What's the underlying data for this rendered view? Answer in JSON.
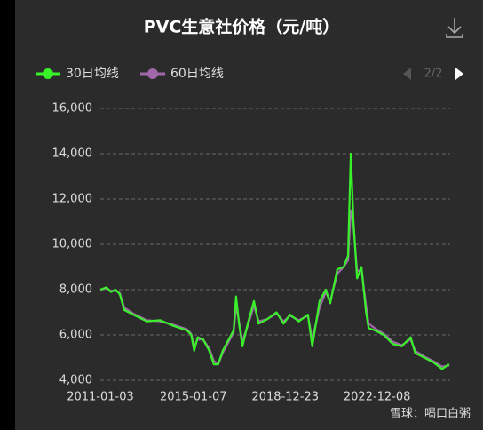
{
  "chart_data": {
    "type": "line",
    "title": "PVC生意社价格（元/吨）",
    "pager": "2/2",
    "watermark": "雪球：喝口白粥",
    "x": [
      "2011-01-03",
      "2011-04-10",
      "2011-06-20",
      "2011-09-01",
      "2011-11-05",
      "2012-01-15",
      "2012-06-05",
      "2013-01-05",
      "2013-08-01",
      "2014-03-01",
      "2014-09-28",
      "2014-12-05",
      "2015-01-20",
      "2015-03-15",
      "2015-06-10",
      "2015-09-15",
      "2015-11-25",
      "2016-02-01",
      "2016-04-12",
      "2016-08-05",
      "2016-10-01",
      "2016-11-10",
      "2016-12-25",
      "2017-02-18",
      "2017-05-12",
      "2017-08-18",
      "2017-10-30",
      "2018-03-18",
      "2018-08-08",
      "2018-11-28",
      "2019-03-08",
      "2019-07-25",
      "2019-12-15",
      "2020-02-22",
      "2020-06-15",
      "2020-09-22",
      "2020-11-30",
      "2021-03-22",
      "2021-06-30",
      "2021-09-08",
      "2021-10-20",
      "2021-12-02",
      "2022-01-28",
      "2022-04-06",
      "2022-06-18",
      "2022-07-28",
      "2022-11-02",
      "2023-03-25",
      "2023-08-12",
      "2024-01-01",
      "2024-05-20",
      "2024-07-30",
      "2024-12-18",
      "2025-05-08",
      "2025-09-25",
      "2026-01-16"
    ],
    "series": [
      {
        "name": "30日均线",
        "color": "#39f12a",
        "values": [
          8000,
          8100,
          7900,
          8000,
          7800,
          7100,
          6900,
          6600,
          6650,
          6400,
          6200,
          6000,
          5300,
          5900,
          5800,
          5300,
          4700,
          4700,
          5300,
          5900,
          6200,
          7700,
          6500,
          5500,
          6500,
          7500,
          6500,
          6700,
          7000,
          6500,
          6900,
          6600,
          6900,
          5500,
          7500,
          8000,
          7400,
          8900,
          9000,
          9500,
          14000,
          11000,
          8500,
          9000,
          7000,
          6300,
          6200,
          6000,
          5600,
          5500,
          5900,
          5200,
          5000,
          4800,
          4500,
          4700
        ]
      },
      {
        "name": "60日均线",
        "color": "#a068a8",
        "values": [
          8000,
          8050,
          7950,
          7950,
          7850,
          7200,
          6950,
          6650,
          6600,
          6450,
          6250,
          6050,
          5500,
          5800,
          5800,
          5400,
          4850,
          4700,
          5200,
          5800,
          6100,
          7300,
          6600,
          5700,
          6400,
          7300,
          6600,
          6700,
          6950,
          6600,
          6850,
          6650,
          6850,
          5800,
          7200,
          7900,
          7500,
          8700,
          9000,
          9300,
          11500,
          10800,
          8800,
          8900,
          7300,
          6500,
          6300,
          6050,
          5700,
          5550,
          5800,
          5300,
          5050,
          4850,
          4600,
          4650
        ]
      }
    ],
    "xlim": [
      "2011-01-03",
      "2026-02-01"
    ],
    "xticks": [
      "2011-01-03",
      "2015-01-07",
      "2018-12-23",
      "2022-12-08"
    ],
    "ylim": [
      4000,
      16000
    ],
    "yticks": [
      {
        "value": 4000,
        "label": "4,000"
      },
      {
        "value": 6000,
        "label": "6,000"
      },
      {
        "value": 8000,
        "label": "8,000"
      },
      {
        "value": 10000,
        "label": "10,000"
      },
      {
        "value": 12000,
        "label": "12,000"
      },
      {
        "value": 14000,
        "label": "14,000"
      },
      {
        "value": 16000,
        "label": "16,000"
      }
    ],
    "grid": true
  }
}
